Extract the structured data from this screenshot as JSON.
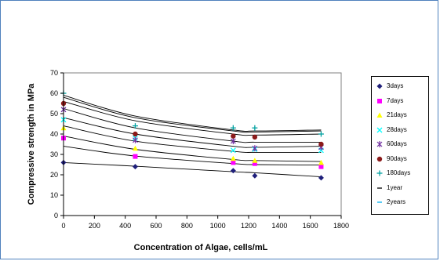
{
  "chart_data": {
    "type": "scatter",
    "title": "",
    "xlabel": "Concentration of Algae, cells/mL",
    "ylabel": "Compressive strength in MPa",
    "xlim": [
      0,
      1800
    ],
    "ylim": [
      0,
      70
    ],
    "xticks": [
      0,
      200,
      400,
      600,
      800,
      1000,
      1200,
      1400,
      1600,
      1800
    ],
    "yticks": [
      0,
      10,
      20,
      30,
      40,
      50,
      60,
      70
    ],
    "grid": false,
    "legend_position": "right",
    "x": [
      0,
      465,
      1100,
      1240,
      1670
    ],
    "series": [
      {
        "name": "3days",
        "marker": "diamond",
        "color": "#1f1f7a",
        "values": [
          26,
          24,
          22,
          19.5,
          18.5
        ],
        "trend": [
          [
            0,
            26
          ],
          [
            465,
            24.2
          ],
          [
            1100,
            21.5
          ],
          [
            1240,
            21
          ],
          [
            1670,
            19
          ]
        ]
      },
      {
        "name": "7days",
        "marker": "square",
        "color": "#ff00ff",
        "values": [
          38,
          29,
          26,
          25.5,
          24
        ],
        "trend": [
          [
            0,
            34
          ],
          [
            465,
            29.2
          ],
          [
            1100,
            25.5
          ],
          [
            1240,
            25
          ],
          [
            1670,
            24.8
          ]
        ]
      },
      {
        "name": "21days",
        "marker": "triangle",
        "color": "#ffff00",
        "values": [
          43,
          33,
          28,
          27,
          26
        ],
        "trend": [
          [
            0,
            39
          ],
          [
            465,
            32.5
          ],
          [
            1100,
            27.5
          ],
          [
            1240,
            27
          ],
          [
            1670,
            26.5
          ]
        ]
      },
      {
        "name": "28days",
        "marker": "x",
        "color": "#00ffff",
        "values": [
          47,
          38,
          32,
          32.5,
          32
        ],
        "trend": [
          [
            0,
            44
          ],
          [
            465,
            36.5
          ],
          [
            1100,
            31.5
          ],
          [
            1240,
            31
          ],
          [
            1670,
            31
          ]
        ]
      },
      {
        "name": "60days",
        "marker": "star",
        "color": "#7030a0",
        "values": [
          52,
          37,
          36.5,
          33,
          33.5
        ],
        "trend": [
          [
            0,
            48
          ],
          [
            465,
            40
          ],
          [
            1100,
            34
          ],
          [
            1240,
            33.5
          ],
          [
            1670,
            34
          ]
        ]
      },
      {
        "name": "90days",
        "marker": "circle",
        "color": "#8b1a1a",
        "values": [
          55,
          40,
          39,
          38.5,
          35
        ],
        "trend": [
          [
            0,
            52.5
          ],
          [
            465,
            43
          ],
          [
            1100,
            36.5
          ],
          [
            1240,
            36
          ],
          [
            1670,
            36
          ]
        ]
      },
      {
        "name": "180days",
        "marker": "plus",
        "color": "#00a0a0",
        "values": [
          60,
          44,
          43,
          43,
          40
        ],
        "trend": [
          [
            0,
            56
          ],
          [
            465,
            46.5
          ],
          [
            1100,
            40
          ],
          [
            1240,
            39.5
          ],
          [
            1670,
            40
          ]
        ]
      },
      {
        "name": "1year",
        "marker": "dash",
        "color": "#000000",
        "values": [],
        "trend": [
          [
            0,
            58
          ],
          [
            465,
            48
          ],
          [
            1100,
            41.5
          ],
          [
            1240,
            41
          ],
          [
            1670,
            41.5
          ]
        ]
      },
      {
        "name": "2years",
        "marker": "dash",
        "color": "#00b0f0",
        "values": [],
        "trend": [
          [
            0,
            59
          ],
          [
            465,
            48.8
          ],
          [
            1100,
            42
          ],
          [
            1240,
            41.5
          ],
          [
            1670,
            42
          ]
        ]
      }
    ]
  }
}
